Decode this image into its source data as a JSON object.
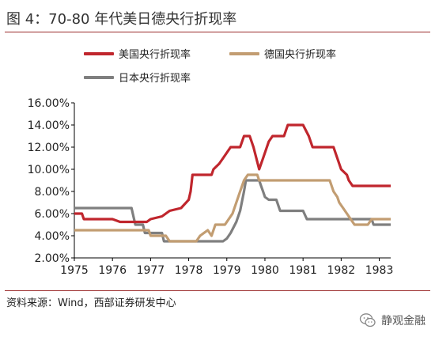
{
  "figure_title": "图 4：70-80 年代美日德央行折现率",
  "source_note": "资料来源：Wind，西部证券研发中心",
  "watermark": "静观金融",
  "chart_data": {
    "type": "line",
    "title": "",
    "xlabel": "",
    "ylabel": "",
    "xlim": [
      1975,
      1983.3
    ],
    "ylim": [
      2,
      16
    ],
    "x_ticks": [
      "1975",
      "1976",
      "1977",
      "1978",
      "1979",
      "1980",
      "1981",
      "1982",
      "1983"
    ],
    "y_ticks": [
      "2.00%",
      "4.00%",
      "6.00%",
      "8.00%",
      "10.00%",
      "12.00%",
      "14.00%",
      "16.00%"
    ],
    "grid": false,
    "legend_position": "top",
    "series": [
      {
        "name": "美国央行折现率",
        "color": "#c0262d",
        "points": [
          [
            1975.0,
            6.0
          ],
          [
            1975.2,
            6.0
          ],
          [
            1975.25,
            5.5
          ],
          [
            1976.0,
            5.5
          ],
          [
            1976.2,
            5.25
          ],
          [
            1976.9,
            5.25
          ],
          [
            1977.0,
            5.5
          ],
          [
            1977.3,
            5.75
          ],
          [
            1977.5,
            6.25
          ],
          [
            1977.8,
            6.5
          ],
          [
            1978.0,
            7.25
          ],
          [
            1978.05,
            8.0
          ],
          [
            1978.1,
            9.5
          ],
          [
            1978.6,
            9.5
          ],
          [
            1978.65,
            10.0
          ],
          [
            1978.8,
            10.5
          ],
          [
            1978.9,
            11.0
          ],
          [
            1979.0,
            11.5
          ],
          [
            1979.1,
            12.0
          ],
          [
            1979.35,
            12.0
          ],
          [
            1979.45,
            13.0
          ],
          [
            1979.6,
            13.0
          ],
          [
            1979.7,
            12.0
          ],
          [
            1979.85,
            10.0
          ],
          [
            1979.95,
            11.0
          ],
          [
            1980.1,
            12.5
          ],
          [
            1980.2,
            13.0
          ],
          [
            1980.5,
            13.0
          ],
          [
            1980.6,
            14.0
          ],
          [
            1981.0,
            14.0
          ],
          [
            1981.15,
            13.0
          ],
          [
            1981.25,
            12.0
          ],
          [
            1981.8,
            12.0
          ],
          [
            1981.9,
            11.0
          ],
          [
            1982.0,
            10.0
          ],
          [
            1982.15,
            9.5
          ],
          [
            1982.2,
            9.0
          ],
          [
            1982.3,
            8.5
          ],
          [
            1983.3,
            8.5
          ]
        ]
      },
      {
        "name": "德国央行折现率",
        "color": "#c29d72",
        "points": [
          [
            1975.0,
            4.5
          ],
          [
            1976.95,
            4.5
          ],
          [
            1977.0,
            4.0
          ],
          [
            1977.4,
            4.0
          ],
          [
            1977.5,
            3.5
          ],
          [
            1977.9,
            3.5
          ],
          [
            1978.2,
            3.5
          ],
          [
            1978.3,
            4.0
          ],
          [
            1978.5,
            4.5
          ],
          [
            1978.6,
            4.0
          ],
          [
            1978.7,
            5.0
          ],
          [
            1978.95,
            5.0
          ],
          [
            1979.05,
            5.5
          ],
          [
            1979.15,
            6.0
          ],
          [
            1979.25,
            7.0
          ],
          [
            1979.35,
            8.0
          ],
          [
            1979.45,
            9.0
          ],
          [
            1979.55,
            9.5
          ],
          [
            1979.8,
            9.5
          ],
          [
            1979.85,
            9.0
          ],
          [
            1981.7,
            9.0
          ],
          [
            1981.8,
            8.0
          ],
          [
            1981.9,
            7.5
          ],
          [
            1981.95,
            7.0
          ],
          [
            1982.05,
            6.5
          ],
          [
            1982.15,
            6.0
          ],
          [
            1982.25,
            5.5
          ],
          [
            1982.35,
            5.0
          ],
          [
            1982.7,
            5.0
          ],
          [
            1982.8,
            5.5
          ],
          [
            1983.3,
            5.5
          ]
        ]
      },
      {
        "name": "日本央行折现率",
        "color": "#7f7f7f",
        "points": [
          [
            1975.0,
            6.5
          ],
          [
            1976.5,
            6.5
          ],
          [
            1976.6,
            5.0
          ],
          [
            1976.8,
            5.0
          ],
          [
            1976.85,
            4.25
          ],
          [
            1977.3,
            4.25
          ],
          [
            1977.35,
            3.5
          ],
          [
            1978.9,
            3.5
          ],
          [
            1979.0,
            3.75
          ],
          [
            1979.1,
            4.25
          ],
          [
            1979.25,
            5.25
          ],
          [
            1979.35,
            6.25
          ],
          [
            1979.45,
            8.0
          ],
          [
            1979.5,
            9.0
          ],
          [
            1979.85,
            9.0
          ],
          [
            1979.9,
            8.5
          ],
          [
            1979.95,
            8.0
          ],
          [
            1980.0,
            7.5
          ],
          [
            1980.1,
            7.25
          ],
          [
            1980.3,
            7.25
          ],
          [
            1980.4,
            6.25
          ],
          [
            1981.0,
            6.25
          ],
          [
            1981.1,
            5.5
          ],
          [
            1982.8,
            5.5
          ],
          [
            1982.85,
            5.0
          ],
          [
            1983.3,
            5.0
          ]
        ]
      }
    ]
  }
}
